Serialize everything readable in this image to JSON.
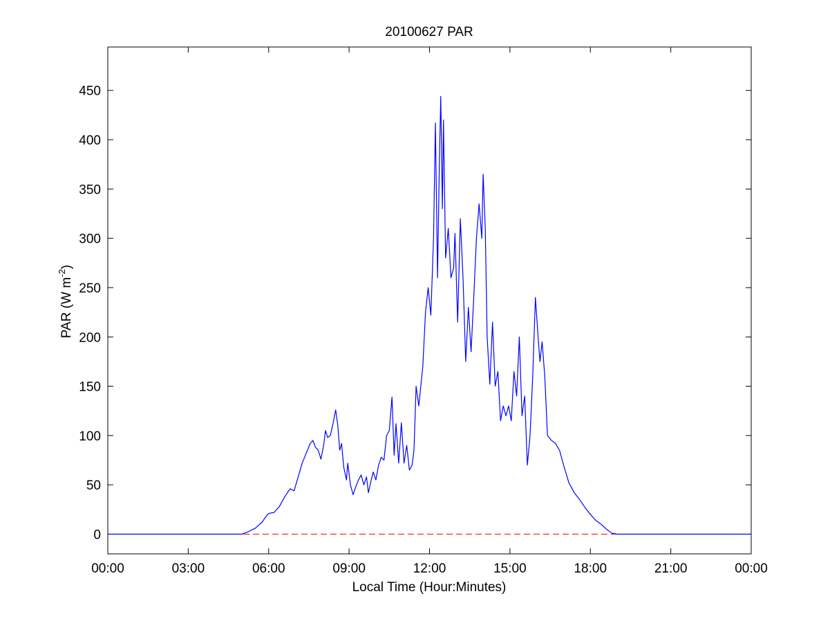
{
  "chart_data": {
    "type": "line",
    "title": "20100627 PAR",
    "x_label": "Local Time (Hour:Minutes)",
    "y_label": [
      "PAR (W m",
      "-2",
      ")"
    ],
    "xlim": [
      0,
      24
    ],
    "xticks": [
      {
        "value": 0,
        "label": "00:00"
      },
      {
        "value": 3,
        "label": "03:00"
      },
      {
        "value": 6,
        "label": "06:00"
      },
      {
        "value": 9,
        "label": "09:00"
      },
      {
        "value": 12,
        "label": "12:00"
      },
      {
        "value": 15,
        "label": "15:00"
      },
      {
        "value": 18,
        "label": "18:00"
      },
      {
        "value": 21,
        "label": "21:00"
      },
      {
        "value": 24,
        "label": "00:00"
      }
    ],
    "ylim": [
      -20,
      494
    ],
    "yticks": [
      0,
      50,
      100,
      150,
      200,
      250,
      300,
      350,
      400,
      450
    ],
    "reference_line": {
      "value": 0,
      "color": "#ff0000",
      "style": "dashed"
    },
    "series": [
      {
        "color": "#0000ff",
        "x": [
          0,
          5.0,
          5.2,
          5.5,
          5.75,
          5.9,
          6.0,
          6.2,
          6.4,
          6.6,
          6.8,
          6.95,
          7.1,
          7.25,
          7.4,
          7.55,
          7.65,
          7.75,
          7.85,
          7.95,
          8.05,
          8.12,
          8.2,
          8.3,
          8.4,
          8.5,
          8.58,
          8.65,
          8.72,
          8.8,
          8.9,
          8.95,
          9.05,
          9.15,
          9.25,
          9.35,
          9.45,
          9.55,
          9.65,
          9.72,
          9.8,
          9.9,
          10.0,
          10.1,
          10.2,
          10.3,
          10.4,
          10.5,
          10.6,
          10.68,
          10.75,
          10.85,
          10.95,
          11.05,
          11.15,
          11.25,
          11.35,
          11.42,
          11.5,
          11.6,
          11.75,
          11.85,
          11.95,
          12.05,
          12.15,
          12.22,
          12.3,
          12.37,
          12.42,
          12.48,
          12.52,
          12.6,
          12.7,
          12.8,
          12.9,
          12.95,
          13.05,
          13.15,
          13.25,
          13.35,
          13.45,
          13.55,
          13.65,
          13.75,
          13.85,
          13.95,
          14.0,
          14.08,
          14.15,
          14.25,
          14.35,
          14.45,
          14.55,
          14.65,
          14.75,
          14.85,
          14.95,
          15.05,
          15.15,
          15.25,
          15.35,
          15.45,
          15.55,
          15.65,
          15.75,
          15.85,
          15.95,
          16.05,
          16.12,
          16.2,
          16.3,
          16.4,
          16.55,
          16.7,
          16.85,
          17.0,
          17.2,
          17.4,
          17.6,
          17.8,
          18.0,
          18.2,
          18.4,
          18.6,
          18.8,
          19.0,
          24
        ],
        "values": [
          0,
          0,
          2,
          6,
          12,
          18,
          21,
          22,
          28,
          38,
          46,
          44,
          58,
          72,
          82,
          92,
          95,
          88,
          85,
          76,
          90,
          105,
          98,
          100,
          112,
          126,
          110,
          85,
          92,
          68,
          55,
          72,
          50,
          40,
          48,
          55,
          60,
          50,
          58,
          42,
          52,
          63,
          55,
          70,
          78,
          75,
          100,
          105,
          139,
          80,
          112,
          72,
          113,
          72,
          90,
          65,
          70,
          85,
          150,
          130,
          170,
          225,
          250,
          222,
          300,
          417,
          260,
          380,
          444,
          330,
          420,
          280,
          310,
          260,
          270,
          305,
          215,
          320,
          260,
          175,
          230,
          185,
          240,
          300,
          335,
          300,
          365,
          310,
          200,
          152,
          215,
          150,
          165,
          115,
          130,
          120,
          130,
          115,
          165,
          140,
          200,
          120,
          140,
          70,
          100,
          160,
          240,
          200,
          175,
          195,
          160,
          100,
          95,
          92,
          85,
          70,
          52,
          42,
          35,
          27,
          20,
          14,
          10,
          5,
          1,
          0,
          0
        ]
      }
    ]
  }
}
